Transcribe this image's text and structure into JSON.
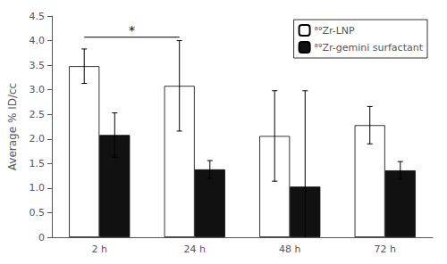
{
  "chart_data": {
    "type": "bar",
    "categories": [
      "2 h",
      "24 h",
      "48 h",
      "72 h"
    ],
    "series": [
      {
        "name": "⁸⁹Zr-LNP",
        "color": "#ffffff",
        "values": [
          3.48,
          3.08,
          2.06,
          2.28
        ],
        "errors": [
          0.35,
          0.92,
          0.92,
          0.38
        ]
      },
      {
        "name": "⁸⁹Zr-gemini surfactant",
        "color": "#111111",
        "values": [
          2.08,
          1.38,
          1.03,
          1.36
        ],
        "errors": [
          0.45,
          0.18,
          1.95,
          0.18
        ]
      }
    ],
    "ylabel": "Average % ID/cc",
    "ylim": [
      0,
      4.5
    ],
    "yticks": [
      0,
      0.5,
      {
        "value": 1.0,
        "label": "1.0"
      },
      1.5,
      {
        "value": 2.0,
        "label": "2.0"
      },
      2.5,
      {
        "value": 3.0,
        "label": "3.0"
      },
      3.5,
      {
        "value": 4.0,
        "label": "4.0"
      },
      4.5
    ],
    "annotations": [
      {
        "text": "*",
        "from": "2 h",
        "to": "24 h",
        "series": "⁸⁹Zr-LNP",
        "y": 4.07
      }
    ],
    "legend": "upper right",
    "grid": false
  }
}
